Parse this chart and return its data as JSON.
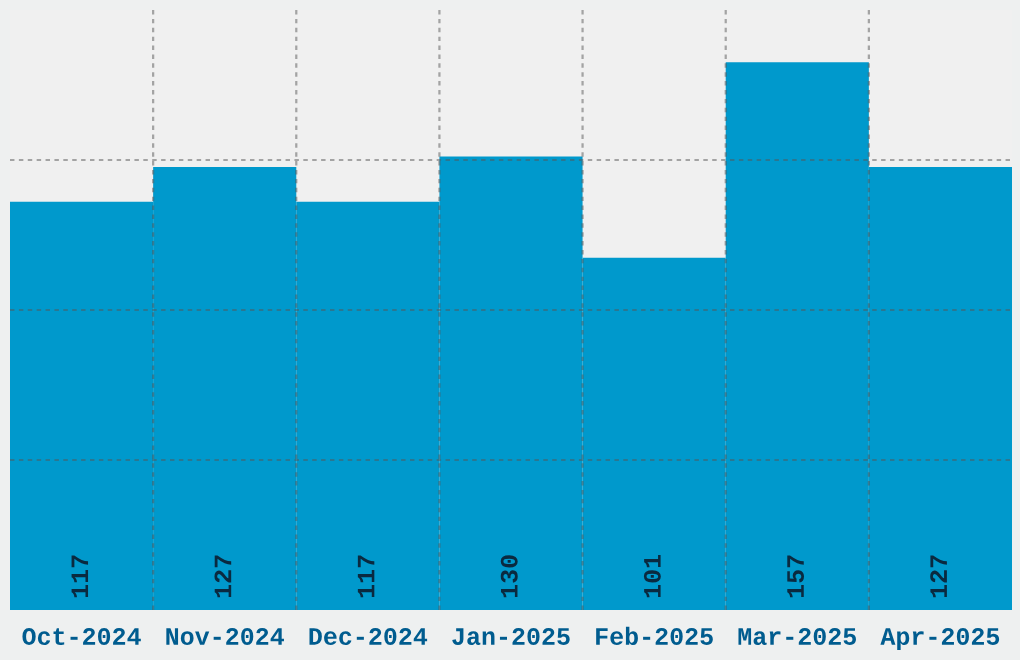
{
  "chart_data": {
    "type": "bar",
    "categories": [
      "Oct-2024",
      "Nov-2024",
      "Dec-2024",
      "Jan-2025",
      "Feb-2025",
      "Mar-2025",
      "Apr-2025"
    ],
    "values": [
      117,
      127,
      117,
      130,
      101,
      157,
      127
    ],
    "color": "#0099cc",
    "ylim": [
      0,
      172
    ],
    "yticks": [
      {
        "value": 43,
        "label": null
      },
      {
        "value": 86,
        "label": null
      },
      {
        "value": 129,
        "label": null
      }
    ],
    "grid": true,
    "data_labels": true
  }
}
